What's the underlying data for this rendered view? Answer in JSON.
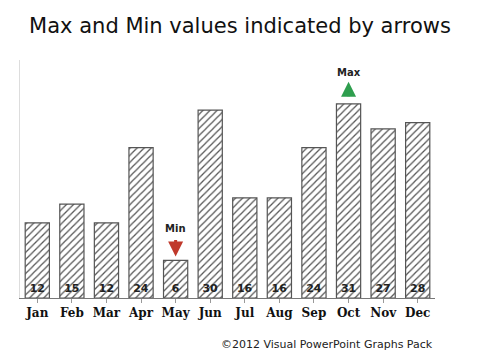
{
  "chart_data": {
    "type": "bar",
    "title": "Max and Min values indicated by arrows",
    "categories": [
      "Jan",
      "Feb",
      "Mar",
      "Apr",
      "May",
      "Jun",
      "Jul",
      "Aug",
      "Sep",
      "Oct",
      "Nov",
      "Dec"
    ],
    "values": [
      12,
      15,
      12,
      24,
      6,
      30,
      16,
      16,
      24,
      31,
      27,
      28
    ],
    "color": "#555555",
    "ylim": [
      0,
      38
    ],
    "data_labels": true,
    "tick_labels": "x",
    "grid": false,
    "annotations": [
      {
        "text": "Max",
        "x": "Oct",
        "direction": "up",
        "color": "#2e9e4e"
      },
      {
        "text": "Min",
        "x": "May",
        "direction": "down",
        "color": "#c0392b"
      }
    ],
    "source": "©2012 Visual PowerPoint Graphs Pack"
  }
}
